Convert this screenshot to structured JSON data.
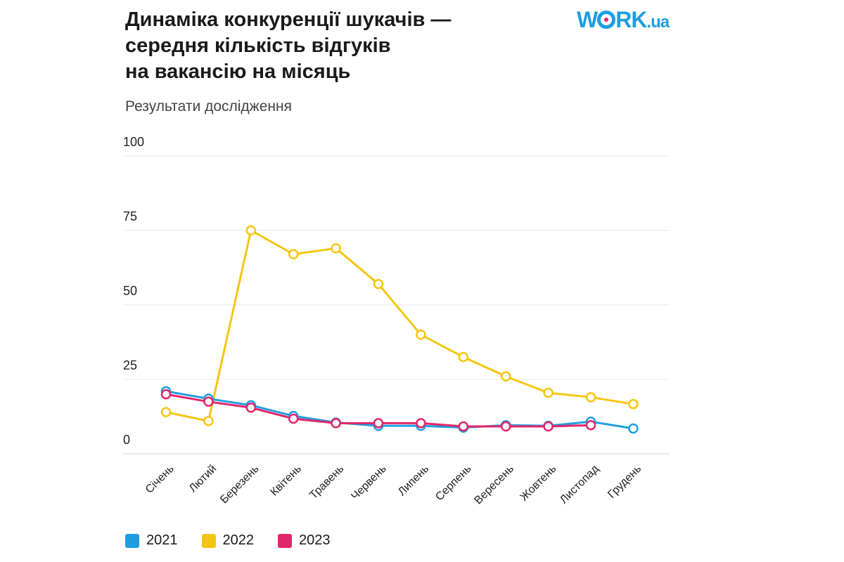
{
  "header": {
    "title_lines": [
      "Динаміка конкуренції шукачів —",
      "середня кількість відгуків",
      "на вакансію на місяць"
    ],
    "subtitle": "Результати дослідження",
    "logo": {
      "w": "W",
      "rk": "RK",
      "ua": ".ua"
    }
  },
  "chart_data": {
    "type": "line",
    "title": "Динаміка конкуренції шукачів — середня кількість відгуків на вакансію на місяць",
    "subtitle": "Результати дослідження",
    "categories": [
      "Січень",
      "Лютий",
      "Березень",
      "Квітень",
      "Травень",
      "Червень",
      "Липень",
      "Серпень",
      "Вересень",
      "Жовтень",
      "Листопад",
      "Грудень"
    ],
    "ylim": [
      0,
      100
    ],
    "yticks": [
      0,
      25,
      50,
      75,
      100
    ],
    "grid": true,
    "legend": "bottom-left",
    "series": [
      {
        "name": "2021",
        "color": "#1e9ee0",
        "values": [
          21,
          18.5,
          16.3,
          12.7,
          10.5,
          9.4,
          9.4,
          8.8,
          9.6,
          9.4,
          10.8,
          8.5
        ]
      },
      {
        "name": "2022",
        "color": "#f5c60f",
        "values": [
          14,
          11,
          75,
          67,
          69,
          57,
          40,
          32.5,
          26,
          20.5,
          19,
          16.7
        ]
      },
      {
        "name": "2023",
        "color": "#e2266b",
        "values": [
          20,
          17.5,
          15.5,
          11.8,
          10.3,
          10.3,
          10.3,
          9.2,
          9.2,
          9.2,
          9.6,
          null
        ]
      }
    ]
  }
}
